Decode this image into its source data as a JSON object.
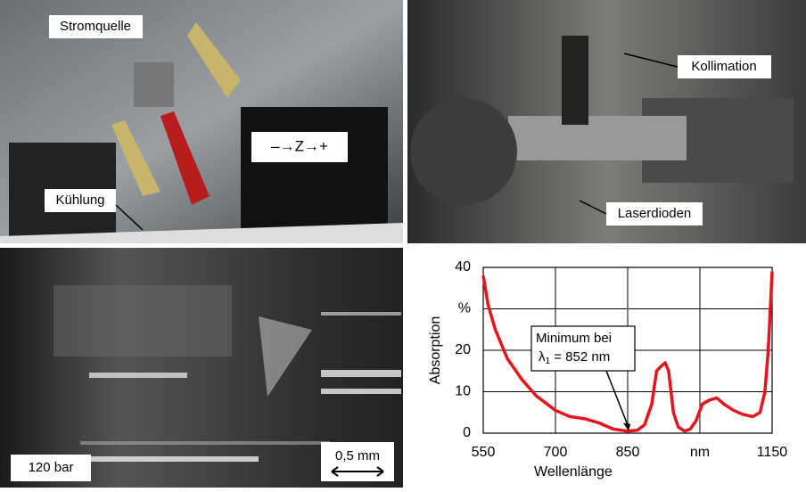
{
  "photos": {
    "top_left": {
      "labels": [
        "Stromquelle",
        "Kühlung"
      ],
      "sign": "–→Z→+"
    },
    "top_right": {
      "labels": [
        "Kollimation",
        "Laserdioden"
      ]
    },
    "bottom_left": {
      "pressure": "120 bar",
      "scale": "0,5 mm"
    }
  },
  "chart_data": {
    "type": "line",
    "x_label": "Wellenlänge",
    "y_label": "Absorption",
    "color": "#e8141b",
    "grid": true,
    "x": [
      550,
      560,
      575,
      600,
      630,
      660,
      700,
      730,
      760,
      790,
      820,
      850,
      870,
      885,
      900,
      910,
      918,
      928,
      935,
      945,
      955,
      968,
      980,
      992,
      1005,
      1020,
      1035,
      1050,
      1070,
      1090,
      1110,
      1125,
      1135,
      1142,
      1150
    ],
    "values": [
      38,
      31,
      25,
      18,
      13,
      9,
      5.5,
      4,
      3.5,
      2.5,
      1,
      0.5,
      0.7,
      2,
      7,
      15,
      16,
      17,
      15,
      5,
      1.5,
      0.5,
      1,
      3,
      7,
      8,
      8.5,
      7,
      5.5,
      4.5,
      4,
      5,
      10,
      20,
      39
    ],
    "xlim": [
      550,
      1150
    ],
    "ylim": [
      0,
      40
    ],
    "xticks": [
      550,
      700,
      850,
      {
        "value": 1000,
        "label": "nm"
      },
      1150
    ],
    "yticks": [
      0,
      10,
      20,
      {
        "value": 30,
        "label": "%"
      },
      40
    ],
    "annotation": {
      "line1": "Minimum bei",
      "symbol": "λ",
      "subscript": "1",
      "rest": " = 852 nm",
      "x": 852,
      "y": 0.5
    }
  }
}
